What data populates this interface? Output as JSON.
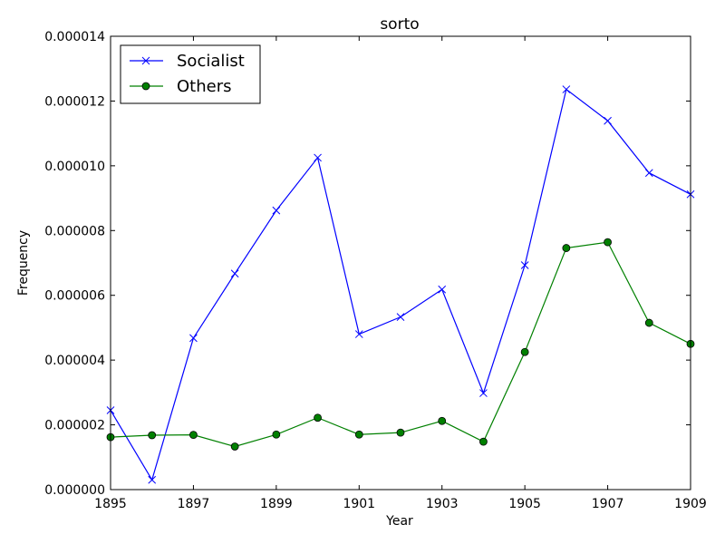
{
  "chart_data": {
    "type": "line",
    "title": "sorto",
    "xlabel": "Year",
    "ylabel": "Frequency",
    "xlim": [
      1895,
      1909
    ],
    "ylim": [
      0,
      1.4e-05
    ],
    "grid": false,
    "legend_position": "top-left",
    "x": [
      1895,
      1896,
      1897,
      1898,
      1899,
      1900,
      1901,
      1902,
      1903,
      1904,
      1905,
      1906,
      1907,
      1908,
      1909
    ],
    "x_ticks": [
      "1895",
      "1897",
      "1899",
      "1901",
      "1903",
      "1905",
      "1907",
      "1909"
    ],
    "y_ticks": [
      "0.000000",
      "0.000002",
      "0.000004",
      "0.000006",
      "0.000008",
      "0.000010",
      "0.000012",
      "0.000014"
    ],
    "series": [
      {
        "name": "Socialist",
        "color": "#0000ff",
        "marker": "x",
        "values": [
          2.45e-06,
          3e-07,
          4.68e-06,
          6.67e-06,
          8.62e-06,
          1.025e-05,
          4.8e-06,
          5.33e-06,
          6.18e-06,
          2.98e-06,
          6.93e-06,
          1.236e-05,
          1.139e-05,
          9.78e-06,
          9.12e-06
        ]
      },
      {
        "name": "Others",
        "color": "#008000",
        "marker": "o",
        "values": [
          1.62e-06,
          1.68e-06,
          1.69e-06,
          1.33e-06,
          1.7e-06,
          2.22e-06,
          1.7e-06,
          1.76e-06,
          2.12e-06,
          1.48e-06,
          4.25e-06,
          7.46e-06,
          7.64e-06,
          5.15e-06,
          4.5e-06
        ]
      }
    ]
  }
}
